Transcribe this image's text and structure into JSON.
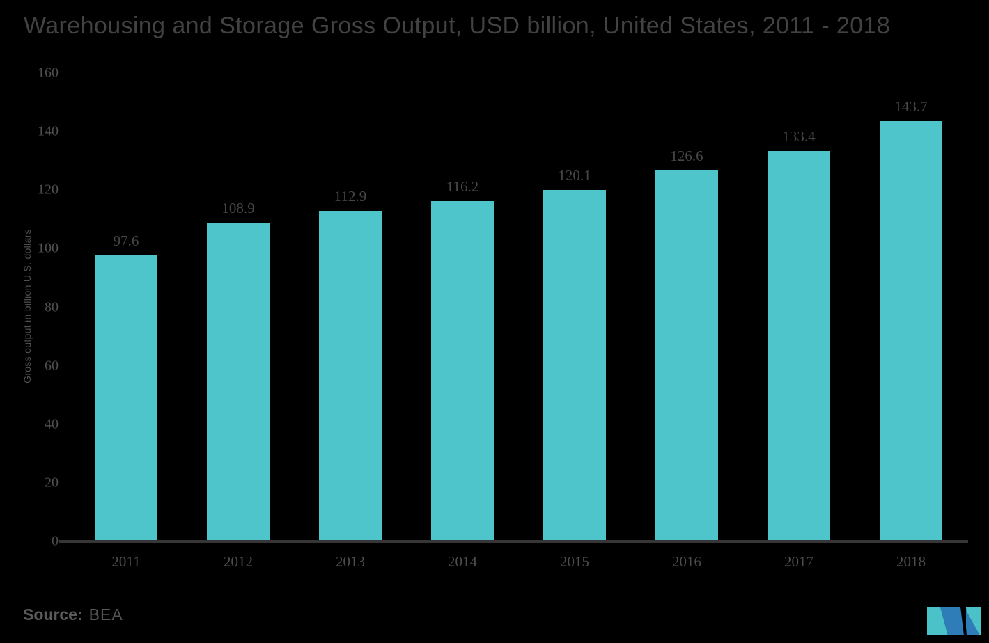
{
  "title": "Warehousing and Storage Gross Output, USD billion, United States, 2011 - 2018",
  "source": {
    "label": "Source:",
    "value": "BEA"
  },
  "logo": {
    "name": "mordor-intelligence-logo",
    "teal": "#4AC2C8",
    "blue": "#2F7DB8"
  },
  "colors": {
    "background": "#000000",
    "bar": "#4EC5CA",
    "axis_line": "#363636",
    "title_text": "#424242",
    "tick_text": "#4F4F4F",
    "data_label_text": "#464646",
    "source_text": "#5B5B5B"
  },
  "chart_data": {
    "type": "bar",
    "categories": [
      "2011",
      "2012",
      "2013",
      "2014",
      "2015",
      "2016",
      "2017",
      "2018"
    ],
    "values": [
      97.6,
      108.9,
      112.9,
      116.2,
      120.1,
      126.6,
      133.4,
      143.7
    ],
    "title": "Warehousing and Storage Gross Output, USD billion, United States, 2011 - 2018",
    "xlabel": "",
    "ylabel": "Gross output in billion U.S. dollars",
    "ylim": [
      0,
      160
    ],
    "ytick_step": 20,
    "grid": false,
    "legend": false,
    "data_labels": true,
    "bar_color": "#4EC5CA"
  }
}
